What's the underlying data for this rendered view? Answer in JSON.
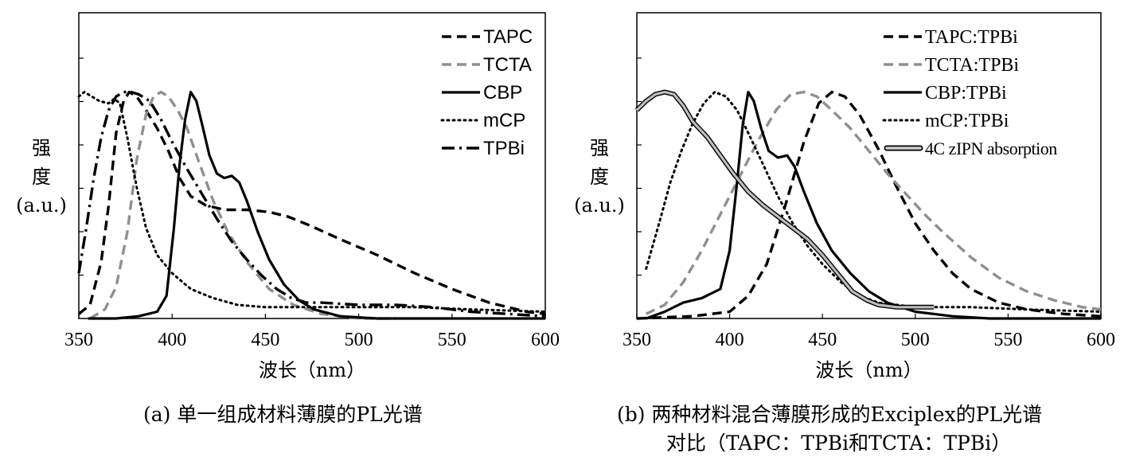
{
  "chart_data": [
    {
      "type": "line",
      "id": "a",
      "xlabel": "波长（nm）",
      "ylabel": [
        "强",
        "度",
        "(a.u.)"
      ],
      "xlim": [
        350,
        600
      ],
      "ylim": [
        0,
        1.35
      ],
      "xticks": [
        "350",
        "400",
        "450",
        "500",
        "550",
        "600"
      ],
      "caption": "(a) 单一组成材料薄膜的PL光谱",
      "series": [
        {
          "name": "TAPC",
          "style": "dash",
          "color": "#000000",
          "points": [
            [
              350,
              0.02
            ],
            [
              356,
              0.06
            ],
            [
              362,
              0.25
            ],
            [
              366,
              0.5
            ],
            [
              370,
              0.82
            ],
            [
              374,
              0.96
            ],
            [
              377,
              1.0
            ],
            [
              381,
              0.98
            ],
            [
              386,
              0.92
            ],
            [
              392,
              0.84
            ],
            [
              398,
              0.74
            ],
            [
              404,
              0.62
            ],
            [
              410,
              0.54
            ],
            [
              418,
              0.5
            ],
            [
              428,
              0.48
            ],
            [
              440,
              0.48
            ],
            [
              452,
              0.47
            ],
            [
              462,
              0.45
            ],
            [
              474,
              0.41
            ],
            [
              490,
              0.35
            ],
            [
              510,
              0.28
            ],
            [
              530,
              0.2
            ],
            [
              550,
              0.13
            ],
            [
              570,
              0.07
            ],
            [
              590,
              0.03
            ],
            [
              600,
              0.02
            ]
          ]
        },
        {
          "name": "TCTA",
          "style": "dash",
          "color": "#8f8f8f",
          "points": [
            [
              356,
              0.0
            ],
            [
              364,
              0.04
            ],
            [
              370,
              0.14
            ],
            [
              376,
              0.38
            ],
            [
              381,
              0.7
            ],
            [
              386,
              0.9
            ],
            [
              390,
              0.98
            ],
            [
              394,
              1.0
            ],
            [
              398,
              0.98
            ],
            [
              403,
              0.92
            ],
            [
              408,
              0.84
            ],
            [
              414,
              0.7
            ],
            [
              422,
              0.52
            ],
            [
              430,
              0.38
            ],
            [
              440,
              0.25
            ],
            [
              452,
              0.13
            ],
            [
              465,
              0.06
            ],
            [
              480,
              0.02
            ],
            [
              500,
              0.0
            ],
            [
              520,
              0.0
            ]
          ]
        },
        {
          "name": "CBP",
          "style": "solid",
          "color": "#000000",
          "points": [
            [
              355,
              0.0
            ],
            [
              370,
              0.0
            ],
            [
              382,
              0.01
            ],
            [
              392,
              0.03
            ],
            [
              397,
              0.1
            ],
            [
              401,
              0.4
            ],
            [
              404,
              0.68
            ],
            [
              407,
              0.88
            ],
            [
              410,
              1.0
            ],
            [
              413,
              0.96
            ],
            [
              416,
              0.86
            ],
            [
              420,
              0.72
            ],
            [
              424,
              0.64
            ],
            [
              428,
              0.62
            ],
            [
              432,
              0.63
            ],
            [
              436,
              0.6
            ],
            [
              440,
              0.52
            ],
            [
              446,
              0.38
            ],
            [
              452,
              0.26
            ],
            [
              460,
              0.15
            ],
            [
              468,
              0.08
            ],
            [
              476,
              0.04
            ],
            [
              490,
              0.01
            ],
            [
              510,
              0.0
            ],
            [
              600,
              0.0
            ]
          ]
        },
        {
          "name": "mCP",
          "style": "dot",
          "color": "#000000",
          "points": [
            [
              350,
              0.98
            ],
            [
              353,
              1.0
            ],
            [
              357,
              0.98
            ],
            [
              361,
              0.96
            ],
            [
              366,
              0.95
            ],
            [
              369,
              0.97
            ],
            [
              372,
              0.95
            ],
            [
              376,
              0.8
            ],
            [
              381,
              0.58
            ],
            [
              386,
              0.4
            ],
            [
              392,
              0.28
            ],
            [
              400,
              0.2
            ],
            [
              410,
              0.13
            ],
            [
              422,
              0.09
            ],
            [
              435,
              0.06
            ],
            [
              450,
              0.05
            ],
            [
              470,
              0.05
            ],
            [
              500,
              0.05
            ],
            [
              530,
              0.05
            ],
            [
              560,
              0.04
            ],
            [
              600,
              0.03
            ]
          ]
        },
        {
          "name": "TPBi",
          "style": "dashdot",
          "color": "#000000",
          "points": [
            [
              350,
              0.2
            ],
            [
              354,
              0.4
            ],
            [
              358,
              0.62
            ],
            [
              362,
              0.8
            ],
            [
              366,
              0.92
            ],
            [
              370,
              0.98
            ],
            [
              374,
              1.0
            ],
            [
              378,
              1.0
            ],
            [
              382,
              0.99
            ],
            [
              388,
              0.96
            ],
            [
              394,
              0.88
            ],
            [
              400,
              0.78
            ],
            [
              408,
              0.66
            ],
            [
              416,
              0.55
            ],
            [
              424,
              0.44
            ],
            [
              432,
              0.34
            ],
            [
              440,
              0.26
            ],
            [
              448,
              0.19
            ],
            [
              456,
              0.13
            ],
            [
              464,
              0.09
            ],
            [
              472,
              0.07
            ],
            [
              480,
              0.07
            ],
            [
              500,
              0.06
            ],
            [
              520,
              0.06
            ],
            [
              540,
              0.05
            ],
            [
              560,
              0.03
            ],
            [
              580,
              0.02
            ],
            [
              600,
              0.01
            ]
          ]
        }
      ]
    },
    {
      "type": "line",
      "id": "b",
      "xlabel": "波长（nm）",
      "ylabel": [
        "强",
        "度",
        "(a.u.)"
      ],
      "xlim": [
        350,
        600
      ],
      "ylim": [
        0,
        1.35
      ],
      "xticks": [
        "350",
        "400",
        "450",
        "500",
        "550",
        "600"
      ],
      "caption": [
        "(b) 两种材料混合薄膜形成的Exciplex的PL光谱",
        "对比（TAPC：TPBi和TCTA：TPBi）"
      ],
      "series": [
        {
          "name": "TAPC:TPBi",
          "style": "dash",
          "color": "#000000",
          "points": [
            [
              350,
              0.0
            ],
            [
              380,
              0.01
            ],
            [
              400,
              0.03
            ],
            [
              410,
              0.1
            ],
            [
              420,
              0.24
            ],
            [
              430,
              0.5
            ],
            [
              440,
              0.78
            ],
            [
              448,
              0.95
            ],
            [
              455,
              1.0
            ],
            [
              462,
              0.98
            ],
            [
              470,
              0.9
            ],
            [
              480,
              0.75
            ],
            [
              490,
              0.58
            ],
            [
              500,
              0.42
            ],
            [
              510,
              0.3
            ],
            [
              520,
              0.2
            ],
            [
              530,
              0.13
            ],
            [
              545,
              0.07
            ],
            [
              560,
              0.04
            ],
            [
              580,
              0.02
            ],
            [
              600,
              0.01
            ]
          ]
        },
        {
          "name": "TCTA:TPBi",
          "style": "dash",
          "color": "#8f8f8f",
          "points": [
            [
              355,
              0.02
            ],
            [
              365,
              0.06
            ],
            [
              375,
              0.16
            ],
            [
              385,
              0.3
            ],
            [
              395,
              0.46
            ],
            [
              405,
              0.62
            ],
            [
              415,
              0.78
            ],
            [
              425,
              0.92
            ],
            [
              433,
              0.99
            ],
            [
              440,
              1.0
            ],
            [
              447,
              0.98
            ],
            [
              455,
              0.92
            ],
            [
              465,
              0.84
            ],
            [
              475,
              0.74
            ],
            [
              485,
              0.64
            ],
            [
              495,
              0.55
            ],
            [
              505,
              0.46
            ],
            [
              515,
              0.38
            ],
            [
              530,
              0.27
            ],
            [
              545,
              0.18
            ],
            [
              560,
              0.12
            ],
            [
              575,
              0.08
            ],
            [
              590,
              0.05
            ],
            [
              600,
              0.04
            ]
          ]
        },
        {
          "name": "CBP:TPBi",
          "style": "solid",
          "color": "#000000",
          "points": [
            [
              355,
              0.0
            ],
            [
              365,
              0.03
            ],
            [
              375,
              0.07
            ],
            [
              385,
              0.09
            ],
            [
              395,
              0.13
            ],
            [
              400,
              0.3
            ],
            [
              404,
              0.6
            ],
            [
              407,
              0.85
            ],
            [
              410,
              1.0
            ],
            [
              413,
              0.96
            ],
            [
              417,
              0.84
            ],
            [
              421,
              0.74
            ],
            [
              426,
              0.71
            ],
            [
              431,
              0.72
            ],
            [
              435,
              0.67
            ],
            [
              440,
              0.56
            ],
            [
              447,
              0.42
            ],
            [
              455,
              0.3
            ],
            [
              465,
              0.2
            ],
            [
              475,
              0.12
            ],
            [
              485,
              0.07
            ],
            [
              500,
              0.03
            ],
            [
              520,
              0.01
            ],
            [
              540,
              0.0
            ],
            [
              600,
              0.0
            ]
          ]
        },
        {
          "name": "mCP:TPBi",
          "style": "dot",
          "color": "#000000",
          "points": [
            [
              355,
              0.22
            ],
            [
              362,
              0.42
            ],
            [
              368,
              0.6
            ],
            [
              374,
              0.74
            ],
            [
              380,
              0.86
            ],
            [
              386,
              0.95
            ],
            [
              392,
              1.0
            ],
            [
              398,
              0.98
            ],
            [
              404,
              0.92
            ],
            [
              410,
              0.82
            ],
            [
              418,
              0.68
            ],
            [
              426,
              0.54
            ],
            [
              434,
              0.42
            ],
            [
              442,
              0.32
            ],
            [
              450,
              0.24
            ],
            [
              460,
              0.16
            ],
            [
              470,
              0.1
            ],
            [
              480,
              0.07
            ],
            [
              500,
              0.05
            ],
            [
              530,
              0.05
            ],
            [
              560,
              0.04
            ],
            [
              600,
              0.03
            ]
          ]
        },
        {
          "name": "4C zIPN absorption",
          "style": "hatched",
          "color": "#000000",
          "points": [
            [
              350,
              0.92
            ],
            [
              355,
              0.96
            ],
            [
              360,
              0.99
            ],
            [
              365,
              1.0
            ],
            [
              370,
              0.99
            ],
            [
              375,
              0.94
            ],
            [
              380,
              0.87
            ],
            [
              388,
              0.8
            ],
            [
              395,
              0.72
            ],
            [
              402,
              0.64
            ],
            [
              410,
              0.56
            ],
            [
              418,
              0.5
            ],
            [
              426,
              0.45
            ],
            [
              434,
              0.4
            ],
            [
              442,
              0.35
            ],
            [
              450,
              0.28
            ],
            [
              458,
              0.2
            ],
            [
              466,
              0.12
            ],
            [
              474,
              0.08
            ],
            [
              480,
              0.06
            ],
            [
              490,
              0.05
            ],
            [
              500,
              0.05
            ],
            [
              510,
              0.05
            ]
          ]
        }
      ]
    }
  ]
}
